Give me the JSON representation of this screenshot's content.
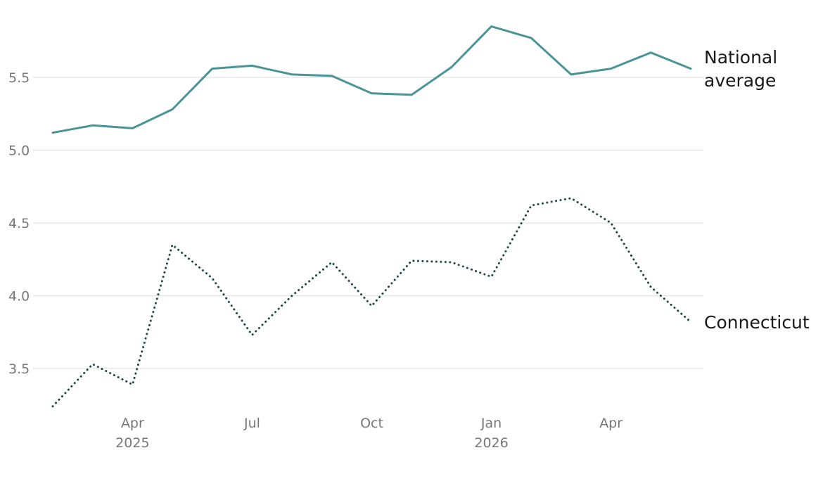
{
  "chart_data": {
    "type": "line",
    "title": "",
    "xlabel": "",
    "ylabel": "",
    "x": [
      "2025-02",
      "2025-03",
      "2025-04",
      "2025-05",
      "2025-06",
      "2025-07",
      "2025-08",
      "2025-09",
      "2025-10",
      "2025-11",
      "2025-12",
      "2026-01",
      "2026-02",
      "2026-03",
      "2026-04",
      "2026-05",
      "2026-06"
    ],
    "x_ticks": [
      {
        "at": "2025-04",
        "label": "Apr",
        "sublabel": "2025"
      },
      {
        "at": "2025-07",
        "label": "Jul",
        "sublabel": ""
      },
      {
        "at": "2025-10",
        "label": "Oct",
        "sublabel": ""
      },
      {
        "at": "2026-01",
        "label": "Jan",
        "sublabel": "2026"
      },
      {
        "at": "2026-04",
        "label": "Apr",
        "sublabel": ""
      }
    ],
    "y_ticks": [
      "3.5",
      "4.0",
      "4.5",
      "5.0",
      "5.5"
    ],
    "ylim": [
      3.2,
      5.9
    ],
    "grid": true,
    "legend": "direct labels at line ends",
    "series": [
      {
        "name": "National average",
        "label_lines": [
          "National",
          "average"
        ],
        "color": "#4a9498",
        "style": "solid",
        "values": [
          5.12,
          5.17,
          5.15,
          5.28,
          5.56,
          5.58,
          5.52,
          5.51,
          5.39,
          5.38,
          5.57,
          5.85,
          5.77,
          5.52,
          5.56,
          5.67,
          5.56
        ]
      },
      {
        "name": "Connecticut",
        "label_lines": [
          "Connecticut"
        ],
        "color": "#1d4a48",
        "style": "dotted",
        "values": [
          3.24,
          3.53,
          3.39,
          4.35,
          4.12,
          3.73,
          4.0,
          4.23,
          3.93,
          4.24,
          4.23,
          4.13,
          4.62,
          4.67,
          4.5,
          4.06,
          3.82
        ]
      }
    ]
  }
}
